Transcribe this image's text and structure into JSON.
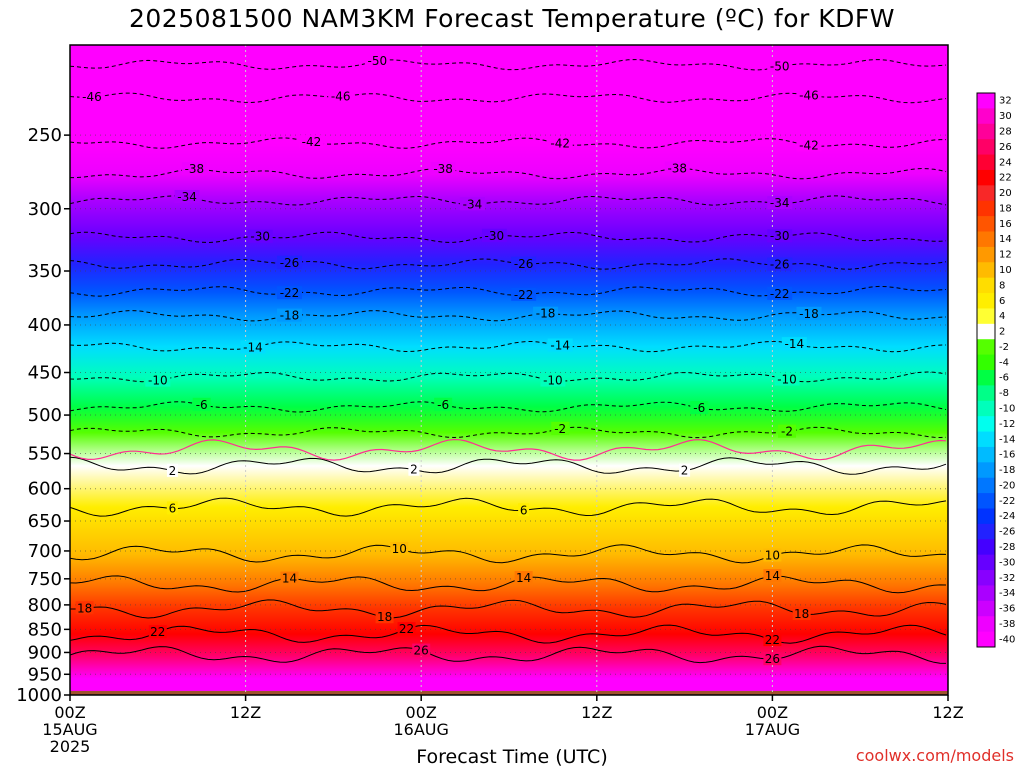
{
  "title": "2025081500 NAM3KM Forecast Temperature (ºC) for KDFW",
  "credit": "coolwx.com/models",
  "colors": {
    "ground": "#a0522d",
    "freezing_line": "#ff2f92"
  },
  "chart_data": {
    "type": "heatmap",
    "title": "2025081500 NAM3KM Forecast Temperature (ºC) for KDFW",
    "xlabel": "Forecast Time (UTC)",
    "ylabel": "",
    "ylim": [
      1000,
      200
    ],
    "y_scale": "log",
    "x_range_hours": [
      0,
      60
    ],
    "x_ticks": [
      {
        "hour": 0,
        "lines": [
          "00Z",
          "15AUG",
          "2025"
        ]
      },
      {
        "hour": 12,
        "lines": [
          "12Z"
        ]
      },
      {
        "hour": 24,
        "lines": [
          "00Z",
          "16AUG"
        ]
      },
      {
        "hour": 36,
        "lines": [
          "12Z"
        ]
      },
      {
        "hour": 48,
        "lines": [
          "00Z",
          "17AUG"
        ]
      },
      {
        "hour": 60,
        "lines": [
          "12Z"
        ]
      }
    ],
    "y_ticks": [
      250,
      300,
      350,
      400,
      450,
      500,
      550,
      600,
      650,
      700,
      750,
      800,
      850,
      900,
      950,
      1000
    ],
    "grid": true,
    "colorbar": {
      "placement": "right",
      "ticks": [
        32,
        30,
        28,
        26,
        24,
        22,
        20,
        18,
        16,
        14,
        12,
        10,
        8,
        6,
        4,
        2,
        -2,
        -4,
        -6,
        -8,
        -10,
        -12,
        -14,
        -16,
        -18,
        -20,
        -22,
        -24,
        -26,
        -28,
        -30,
        -32,
        -34,
        -36,
        -38,
        -40
      ],
      "colors": [
        "#ff00ff",
        "#ff00cc",
        "#ff0099",
        "#ff0066",
        "#ff0033",
        "#ff0000",
        "#f82828",
        "#ff3300",
        "#ff5500",
        "#ff7700",
        "#ff9900",
        "#ffbb00",
        "#ffdd00",
        "#ffee00",
        "#ffff33",
        "#ffffff",
        "#55ff00",
        "#33ff00",
        "#00ff44",
        "#00ff88",
        "#00ffbb",
        "#00ffee",
        "#00ddff",
        "#00bbff",
        "#0099ff",
        "#0077ff",
        "#0055ff",
        "#0033ff",
        "#2222ff",
        "#4400ff",
        "#6600ff",
        "#8800ff",
        "#aa00ff",
        "#cc00ff",
        "#ee00ff",
        "#ff00ff"
      ]
    },
    "isotherms": [
      {
        "label": "-50",
        "pressure": 210,
        "dashed": true,
        "labels_at_hours": [
          21,
          48.5
        ]
      },
      {
        "label": "-46",
        "pressure": 228,
        "dashed": true,
        "labels_at_hours": [
          1.5,
          18.5,
          50.5
        ]
      },
      {
        "label": "-42",
        "pressure": 255,
        "dashed": true,
        "labels_at_hours": [
          16.5,
          33.5,
          50.5
        ]
      },
      {
        "label": "-38",
        "pressure": 275,
        "dashed": true,
        "labels_at_hours": [
          8.5,
          25.5,
          41.5
        ]
      },
      {
        "label": "-34",
        "pressure": 294,
        "dashed": true,
        "labels_at_hours": [
          8,
          27.5,
          48.5
        ]
      },
      {
        "label": "-30",
        "pressure": 322,
        "dashed": true,
        "labels_at_hours": [
          13,
          29,
          48.5
        ]
      },
      {
        "label": "-26",
        "pressure": 344,
        "dashed": true,
        "labels_at_hours": [
          15,
          31,
          48.5
        ]
      },
      {
        "label": "-22",
        "pressure": 368,
        "dashed": true,
        "labels_at_hours": [
          15,
          31,
          48.5
        ]
      },
      {
        "label": "-18",
        "pressure": 391,
        "dashed": true,
        "labels_at_hours": [
          15,
          32.5,
          50.5
        ]
      },
      {
        "label": "-14",
        "pressure": 422,
        "dashed": true,
        "labels_at_hours": [
          12.5,
          33.5,
          49.5
        ]
      },
      {
        "label": "-10",
        "pressure": 455,
        "dashed": true,
        "labels_at_hours": [
          6,
          33,
          49
        ]
      },
      {
        "label": "-6",
        "pressure": 490,
        "dashed": true,
        "labels_at_hours": [
          9,
          25.5,
          43
        ]
      },
      {
        "label": "-2",
        "pressure": 522,
        "dashed": true,
        "labels_at_hours": [
          33.5,
          49
        ]
      },
      {
        "label": "2",
        "pressure": 567,
        "dashed": false,
        "labels_at_hours": [
          7,
          23.5,
          42
        ]
      },
      {
        "label": "6",
        "pressure": 628,
        "dashed": false,
        "labels_at_hours": [
          7,
          31
        ]
      },
      {
        "label": "10",
        "pressure": 705,
        "dashed": false,
        "labels_at_hours": [
          22.5,
          48
        ]
      },
      {
        "label": "14",
        "pressure": 760,
        "dashed": false,
        "labels_at_hours": [
          15,
          31,
          48
        ]
      },
      {
        "label": "18",
        "pressure": 808,
        "dashed": false,
        "labels_at_hours": [
          1,
          21.5,
          50
        ]
      },
      {
        "label": "22",
        "pressure": 860,
        "dashed": false,
        "labels_at_hours": [
          6,
          23,
          48
        ]
      },
      {
        "label": "26",
        "pressure": 905,
        "dashed": false,
        "labels_at_hours": [
          24,
          48
        ]
      }
    ]
  }
}
